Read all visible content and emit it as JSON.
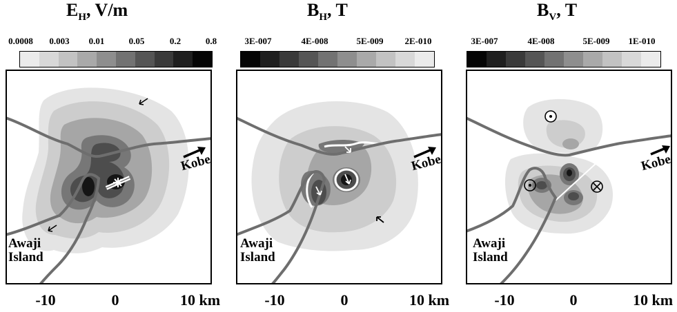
{
  "panels": [
    {
      "title_main": "E",
      "title_sub": "H",
      "title_unit": ", V/m",
      "scale_ticks": [
        "0.0008",
        "0.003",
        "0.01",
        "0.05",
        "0.2",
        "0.8"
      ],
      "colorbar_colors": [
        "#ebebeb",
        "#d8d8d8",
        "#c2c2c2",
        "#a9a9a9",
        "#8e8e8e",
        "#727272",
        "#555555",
        "#3a3a3a",
        "#1f1f1f",
        "#050505"
      ],
      "x_ticks": [
        "-10",
        "0",
        "10 km"
      ],
      "place_awaji_1": "Awaji",
      "place_awaji_2": "Island",
      "place_kobe": "Kobe"
    },
    {
      "title_main": "B",
      "title_sub": "H",
      "title_unit": ", T",
      "scale_ticks": [
        "3E-007",
        "4E-008",
        "5E-009",
        "2E-010"
      ],
      "colorbar_colors": [
        "#050505",
        "#1f1f1f",
        "#3a3a3a",
        "#555555",
        "#727272",
        "#8e8e8e",
        "#a9a9a9",
        "#c2c2c2",
        "#d8d8d8",
        "#ebebeb"
      ],
      "x_ticks": [
        "-10",
        "0",
        "10 km"
      ],
      "place_awaji_1": "Awaji",
      "place_awaji_2": "Island",
      "place_kobe": "Kobe"
    },
    {
      "title_main": "B",
      "title_sub": "V",
      "title_unit": ", T",
      "scale_ticks": [
        "3E-007",
        "4E-008",
        "5E-009",
        "1E-010"
      ],
      "colorbar_colors": [
        "#050505",
        "#1f1f1f",
        "#3a3a3a",
        "#555555",
        "#727272",
        "#8e8e8e",
        "#a9a9a9",
        "#c2c2c2",
        "#d8d8d8",
        "#ebebeb"
      ],
      "x_ticks": [
        "-10",
        "0",
        "10 km"
      ],
      "place_awaji_1": "Awaji",
      "place_awaji_2": "Island",
      "place_kobe": "Kobe"
    }
  ],
  "fill_colors": {
    "outer": "#e4e4e4",
    "light": "#cdcdcd",
    "mid": "#a6a6a6",
    "dark": "#777777",
    "darker": "#4d4d4d",
    "darkest": "#151515",
    "coast_line": "#6e6e6e"
  }
}
